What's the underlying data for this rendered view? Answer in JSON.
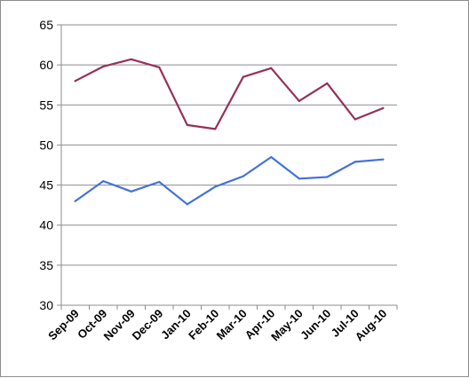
{
  "chart_data": {
    "type": "line",
    "categories": [
      "Sep-09",
      "Oct-09",
      "Nov-09",
      "Dec-09",
      "Jan-10",
      "Feb-10",
      "Mar-10",
      "Apr-10",
      "May-10",
      "Jun-10",
      "Jul-10",
      "Aug-10"
    ],
    "series": [
      {
        "color": "#953158",
        "values": [
          58.0,
          59.8,
          60.7,
          59.7,
          52.5,
          52.0,
          58.5,
          59.6,
          55.5,
          57.7,
          53.2,
          54.6
        ]
      },
      {
        "color": "#4472d8",
        "values": [
          43.0,
          45.5,
          44.2,
          45.4,
          42.6,
          44.8,
          46.1,
          48.5,
          45.8,
          46.0,
          47.9,
          48.2
        ]
      }
    ],
    "ylim": [
      30,
      65
    ],
    "yticks": [
      "30",
      "35",
      "40",
      "45",
      "50",
      "55",
      "60",
      "65"
    ],
    "grid": true
  }
}
